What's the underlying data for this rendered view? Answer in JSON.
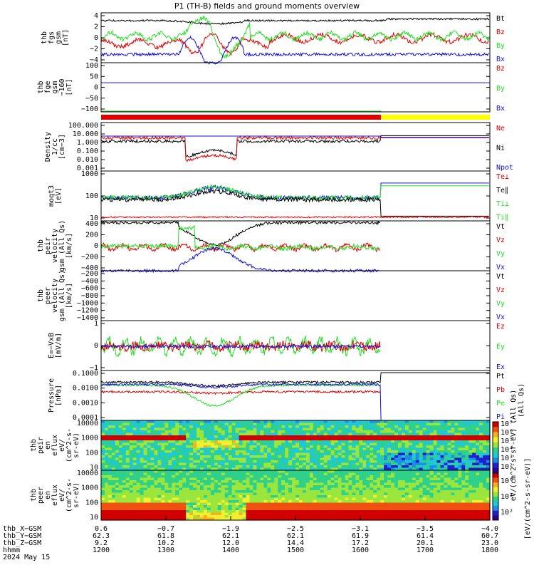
{
  "title": "P1 (TH-B) fields and ground moments overview",
  "date_label": "2024 May 15",
  "colors": {
    "black": "#000000",
    "red": "#e00000",
    "green": "#22dd22",
    "blue": "#1010e0",
    "yellow": "#ffff00"
  },
  "chart_data": [
    {
      "type": "line",
      "id": "fgs",
      "ylabel": [
        "thb",
        "fgs",
        "gsm",
        "[nT]"
      ],
      "ylim": [
        -4,
        5
      ],
      "ticks": [
        "4",
        "2",
        "0",
        "−2",
        "−4"
      ],
      "legend": [
        {
          "name": "Bt",
          "color": "black"
        },
        {
          "name": "Bz",
          "color": "red"
        },
        {
          "name": "By",
          "color": "green"
        },
        {
          "name": "Bx",
          "color": "blue"
        }
      ]
    },
    {
      "type": "line",
      "id": "fge",
      "ylabel": [
        "thb",
        "fge",
        "gsm",
        "−160",
        "[nT]"
      ],
      "ylim": [
        -130,
        110
      ],
      "ticks": [
        "100",
        "50",
        "0",
        "−50",
        "−100"
      ],
      "legend": [
        {
          "name": "Bz",
          "color": "red"
        },
        {
          "name": "By",
          "color": "green"
        },
        {
          "name": "Bx",
          "color": "blue"
        }
      ]
    },
    {
      "type": "line",
      "id": "density",
      "log": true,
      "ylabel": [
        "Density",
        "1/cc",
        "[cm−3]"
      ],
      "ticks": [
        "100.000",
        "10.000",
        "1.000",
        "0.100",
        "0.010",
        "0.001"
      ],
      "legend": [
        {
          "name": "Ne",
          "color": "red"
        },
        {
          "name": "Ni",
          "color": "black"
        },
        {
          "name": "Npot",
          "color": "blue"
        }
      ]
    },
    {
      "type": "line",
      "id": "temp",
      "log": true,
      "ylabel": [
        "moqt3",
        "[eV]"
      ],
      "ticks": [
        "1000",
        "100",
        "10"
      ],
      "legend": [
        {
          "name": "Te⊥",
          "color": "red"
        },
        {
          "name": "Te∥",
          "color": "black"
        },
        {
          "name": "Ti⊥",
          "color": "green"
        },
        {
          "name": "Ti∥",
          "color": "green"
        }
      ]
    },
    {
      "type": "line",
      "id": "peir_vel",
      "ylabel": [
        "thb",
        "peir",
        "velocity",
        "gsm (All Qs)",
        "[km/s]"
      ],
      "ylim": [
        -400,
        450
      ],
      "ticks": [
        "400",
        "200",
        "0",
        "−200",
        "−400"
      ],
      "legend": [
        {
          "name": "Vt",
          "color": "black"
        },
        {
          "name": "Vz",
          "color": "red"
        },
        {
          "name": "Vy",
          "color": "green"
        },
        {
          "name": "Vx",
          "color": "blue"
        }
      ]
    },
    {
      "type": "line",
      "id": "peer_vel",
      "ylabel": [
        "thb",
        "peer",
        "velocity",
        "gsm (All Qs)",
        "[km/s]"
      ],
      "ylim": [
        -1400,
        -200
      ],
      "ticks": [
        "−200",
        "−400",
        "−600",
        "−800",
        "−1000",
        "−1200",
        "−1400"
      ],
      "legend": [
        {
          "name": "Vt",
          "color": "black"
        },
        {
          "name": "Vz",
          "color": "red"
        },
        {
          "name": "Vy",
          "color": "green"
        },
        {
          "name": "Vx",
          "color": "blue"
        }
      ]
    },
    {
      "type": "line",
      "id": "efield",
      "ylabel": [
        "E=−VxB",
        "[mV/m]"
      ],
      "ylim": [
        -1.5,
        1.6
      ],
      "ticks": [
        "1",
        "0",
        "−1"
      ],
      "legend": [
        {
          "name": "Ez",
          "color": "red"
        },
        {
          "name": "Ey",
          "color": "green"
        },
        {
          "name": "Ex",
          "color": "blue"
        }
      ]
    },
    {
      "type": "line",
      "id": "pressure",
      "log": true,
      "ylabel": [
        "Pressure",
        "[nPa]"
      ],
      "ticks": [
        "0.1000",
        "0.0100",
        "0.0010",
        "0.0001"
      ],
      "side_label": "(All Qs)",
      "legend": [
        {
          "name": "Pt",
          "color": "black"
        },
        {
          "name": "Pb",
          "color": "red"
        },
        {
          "name": "Pe",
          "color": "green"
        },
        {
          "name": "Pi",
          "color": "blue"
        }
      ]
    },
    {
      "type": "heatmap",
      "id": "peir_spec",
      "ylabel": [
        "thb",
        "peir",
        "en",
        "eflux",
        "eV/",
        "(cm^2-s-",
        "sr-eV)"
      ],
      "ticks": [
        "10000",
        "1000",
        "100",
        "10"
      ]
    },
    {
      "type": "heatmap",
      "id": "peer_spec",
      "ylabel": [
        "thb",
        "peer",
        "en",
        "eflux",
        "eV/",
        "(cm^2-s-",
        "sr-eV)"
      ],
      "ticks": [
        "10000",
        "1000",
        "100",
        "10"
      ]
    }
  ],
  "colorbar": {
    "ticks_upper": [
      "10⁷",
      "10⁶",
      "10⁵",
      "10⁴",
      "10³",
      "10²"
    ],
    "ticks_lower": [
      "10⁶",
      "10⁴",
      "10²"
    ],
    "label_upper": "eV/(cm^2-s-sr-eV) (All Qs)",
    "label_lower": "[eV/(cm^2-s-sr-eV)]"
  },
  "x_axis": {
    "rows": [
      {
        "label": "thb_X−GSM",
        "values": [
          "0.6",
          "−0.7",
          "−1.9",
          "−2.5",
          "−3.1",
          "−3.5",
          "−4.0"
        ]
      },
      {
        "label": "thb_Y−GSM",
        "values": [
          "62.3",
          "61.8",
          "62.1",
          "62.1",
          "61.9",
          "61.4",
          "60.7"
        ]
      },
      {
        "label": "thb_Z−GSM",
        "values": [
          "9.2",
          "10.2",
          "12.0",
          "14.4",
          "17.2",
          "20.1",
          "23.0"
        ]
      },
      {
        "label": "hhmm",
        "values": [
          "1200",
          "1300",
          "1400",
          "1500",
          "1600",
          "1700",
          "1800"
        ]
      }
    ]
  },
  "mode_bar": {
    "segments": [
      {
        "color": "red",
        "from": 1200,
        "to": 1632
      },
      {
        "color": "yellow",
        "from": 1632,
        "to": 1800
      }
    ]
  }
}
